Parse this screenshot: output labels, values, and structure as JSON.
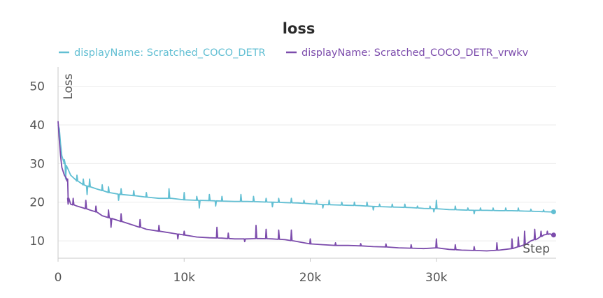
{
  "chart_data": {
    "type": "line",
    "title": "loss",
    "xlabel": "Step",
    "ylabel": "Loss",
    "xlim": [
      0,
      39500
    ],
    "ylim": [
      5.5,
      55
    ],
    "x_ticks": [
      0,
      10000,
      20000,
      30000
    ],
    "x_tick_labels": [
      "0",
      "10k",
      "20k",
      "30k"
    ],
    "y_ticks": [
      10,
      20,
      30,
      40,
      50
    ],
    "y_tick_labels": [
      "10",
      "20",
      "30",
      "40",
      "50"
    ],
    "grid": true,
    "legend_position": "top-center",
    "series": [
      {
        "name": "displayName: Scratched_COCO_DETR",
        "color": "#62bfd3",
        "points": [
          [
            0,
            40
          ],
          [
            100,
            39
          ],
          [
            200,
            35
          ],
          [
            300,
            32
          ],
          [
            500,
            30
          ],
          [
            800,
            28.5
          ],
          [
            1000,
            27
          ],
          [
            1500,
            25.5
          ],
          [
            2000,
            24.5
          ],
          [
            2500,
            24
          ],
          [
            3000,
            23.5
          ],
          [
            3500,
            23
          ],
          [
            4000,
            22.5
          ],
          [
            5000,
            22
          ],
          [
            6000,
            21.7
          ],
          [
            7000,
            21.3
          ],
          [
            8000,
            21
          ],
          [
            9000,
            21
          ],
          [
            10000,
            20.6
          ],
          [
            11000,
            20.5
          ],
          [
            12000,
            20.4
          ],
          [
            13000,
            20.3
          ],
          [
            14000,
            20.2
          ],
          [
            15000,
            20.2
          ],
          [
            16000,
            20.1
          ],
          [
            17000,
            20
          ],
          [
            18000,
            19.9
          ],
          [
            19000,
            19.8
          ],
          [
            20000,
            19.6
          ],
          [
            21000,
            19.4
          ],
          [
            22000,
            19.3
          ],
          [
            23000,
            19.2
          ],
          [
            24000,
            19.1
          ],
          [
            25000,
            18.9
          ],
          [
            26000,
            18.8
          ],
          [
            27000,
            18.7
          ],
          [
            28000,
            18.6
          ],
          [
            29000,
            18.4
          ],
          [
            30000,
            18.3
          ],
          [
            31000,
            18.1
          ],
          [
            32000,
            18
          ],
          [
            33000,
            17.9
          ],
          [
            34000,
            17.9
          ],
          [
            35000,
            17.8
          ],
          [
            36000,
            17.8
          ],
          [
            37000,
            17.7
          ],
          [
            38000,
            17.6
          ],
          [
            39000,
            17.5
          ],
          [
            39300,
            17.5
          ]
        ],
        "spikes": [
          [
            500,
            31
          ],
          [
            1500,
            27
          ],
          [
            2000,
            26
          ],
          [
            2500,
            26
          ],
          [
            3500,
            24.5
          ],
          [
            4000,
            24
          ],
          [
            5000,
            23.5
          ],
          [
            6000,
            23
          ],
          [
            7000,
            22.5
          ],
          [
            8800,
            23.5
          ],
          [
            10000,
            22.5
          ],
          [
            11000,
            21.5
          ],
          [
            12000,
            22
          ],
          [
            13000,
            21.5
          ],
          [
            14500,
            22
          ],
          [
            15500,
            21.5
          ],
          [
            16500,
            21
          ],
          [
            17500,
            21
          ],
          [
            18500,
            21
          ],
          [
            19500,
            20.5
          ],
          [
            20500,
            20.5
          ],
          [
            21500,
            20.5
          ],
          [
            22500,
            20
          ],
          [
            23500,
            20
          ],
          [
            24500,
            20
          ],
          [
            25500,
            19.5
          ],
          [
            26500,
            19.5
          ],
          [
            27500,
            19.5
          ],
          [
            28500,
            19
          ],
          [
            29500,
            19
          ],
          [
            30000,
            20.5
          ],
          [
            31500,
            19
          ],
          [
            32500,
            18.5
          ],
          [
            33500,
            18.5
          ],
          [
            34500,
            18.5
          ],
          [
            35500,
            18.5
          ],
          [
            36500,
            18.5
          ],
          [
            37500,
            18.2
          ],
          [
            38500,
            18
          ]
        ],
        "drops": [
          [
            600,
            26
          ],
          [
            2300,
            22
          ],
          [
            4800,
            20.5
          ],
          [
            11200,
            18.5
          ],
          [
            12500,
            19
          ],
          [
            17000,
            18.8
          ],
          [
            21000,
            18.5
          ],
          [
            25000,
            18
          ],
          [
            29800,
            17.5
          ],
          [
            33000,
            17
          ]
        ]
      },
      {
        "name": "displayName: Scratched_COCO_DETR_vrwkv",
        "color": "#7c4cac",
        "points": [
          [
            0,
            41
          ],
          [
            100,
            36
          ],
          [
            200,
            32
          ],
          [
            300,
            29
          ],
          [
            500,
            27
          ],
          [
            700,
            26
          ],
          [
            800,
            21
          ],
          [
            1000,
            19.5
          ],
          [
            1500,
            19
          ],
          [
            2000,
            18.5
          ],
          [
            2500,
            18
          ],
          [
            3000,
            17.5
          ],
          [
            3500,
            16.5
          ],
          [
            4000,
            16
          ],
          [
            5000,
            15
          ],
          [
            6000,
            14
          ],
          [
            7000,
            13
          ],
          [
            8000,
            12.5
          ],
          [
            9000,
            12
          ],
          [
            10000,
            11.5
          ],
          [
            11000,
            11
          ],
          [
            12000,
            10.8
          ],
          [
            13000,
            10.7
          ],
          [
            14000,
            10.5
          ],
          [
            15000,
            10.5
          ],
          [
            16000,
            10.6
          ],
          [
            17000,
            10.5
          ],
          [
            18000,
            10.3
          ],
          [
            19000,
            9.8
          ],
          [
            20000,
            9.2
          ],
          [
            21000,
            9
          ],
          [
            22000,
            8.8
          ],
          [
            23000,
            8.8
          ],
          [
            24000,
            8.7
          ],
          [
            25000,
            8.5
          ],
          [
            26000,
            8.4
          ],
          [
            27000,
            8.2
          ],
          [
            28000,
            8.1
          ],
          [
            29000,
            8
          ],
          [
            30000,
            8.2
          ],
          [
            30500,
            8
          ],
          [
            31000,
            7.8
          ],
          [
            32000,
            7.6
          ],
          [
            33000,
            7.5
          ],
          [
            34000,
            7.4
          ],
          [
            35000,
            7.6
          ],
          [
            36000,
            8
          ],
          [
            36500,
            8.5
          ],
          [
            37000,
            9
          ],
          [
            37500,
            10
          ],
          [
            38000,
            10.5
          ],
          [
            38500,
            11.5
          ],
          [
            39000,
            11.8
          ],
          [
            39300,
            11.5
          ]
        ],
        "spikes": [
          [
            700,
            25.5
          ],
          [
            1200,
            21
          ],
          [
            2200,
            20.5
          ],
          [
            3000,
            19
          ],
          [
            4000,
            18
          ],
          [
            5000,
            17
          ],
          [
            6500,
            15.5
          ],
          [
            8000,
            14
          ],
          [
            10000,
            12.5
          ],
          [
            12600,
            13.5
          ],
          [
            13500,
            12
          ],
          [
            15700,
            14
          ],
          [
            16500,
            13
          ],
          [
            17500,
            12.8
          ],
          [
            18500,
            12.8
          ],
          [
            20000,
            10.5
          ],
          [
            22000,
            9.5
          ],
          [
            24000,
            9.3
          ],
          [
            26000,
            9.2
          ],
          [
            28000,
            9
          ],
          [
            30000,
            10.5
          ],
          [
            31500,
            9
          ],
          [
            33000,
            8.5
          ],
          [
            34800,
            9.5
          ],
          [
            36000,
            10.5
          ],
          [
            36500,
            11
          ],
          [
            37000,
            12.5
          ],
          [
            37800,
            13
          ],
          [
            38300,
            12.5
          ],
          [
            38800,
            12.5
          ]
        ],
        "drops": [
          [
            800,
            19.5
          ],
          [
            4200,
            13.5
          ],
          [
            9500,
            10.5
          ],
          [
            14800,
            9.8
          ]
        ]
      }
    ]
  }
}
